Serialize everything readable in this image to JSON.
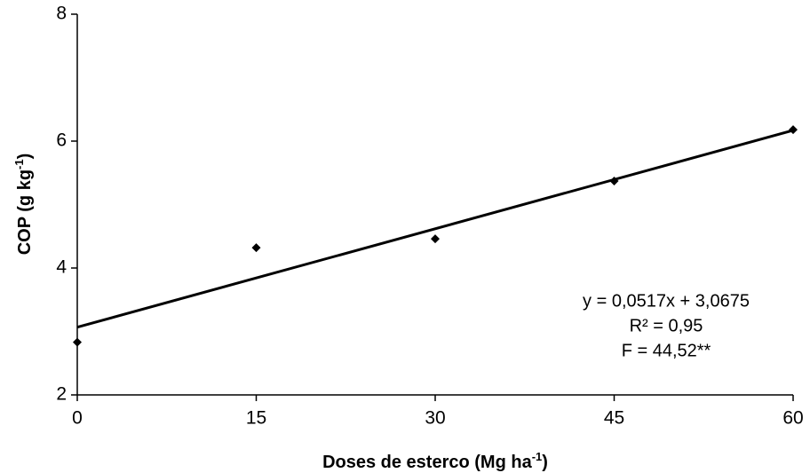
{
  "chart_data": {
    "type": "scatter",
    "x_label": [
      "Doses de esterco (Mg ha",
      "-1",
      ")"
    ],
    "y_label": [
      "COP (g kg",
      "-1",
      ")"
    ],
    "x": [
      0,
      15,
      30,
      45,
      60
    ],
    "values": [
      2.83,
      4.32,
      4.46,
      5.37,
      6.18
    ],
    "color": "#000000",
    "trendline": {
      "slope": 0.0517,
      "intercept": 3.0675
    },
    "annotations": [
      "y = 0,0517x + 3,0675",
      "R² = 0,95",
      "F = 44,52**"
    ],
    "xlim": [
      0,
      60
    ],
    "xticks": [
      0,
      15,
      30,
      45,
      60
    ],
    "ylim": [
      2,
      8
    ],
    "yticks": [
      2,
      4,
      6,
      8
    ],
    "grid": false
  }
}
